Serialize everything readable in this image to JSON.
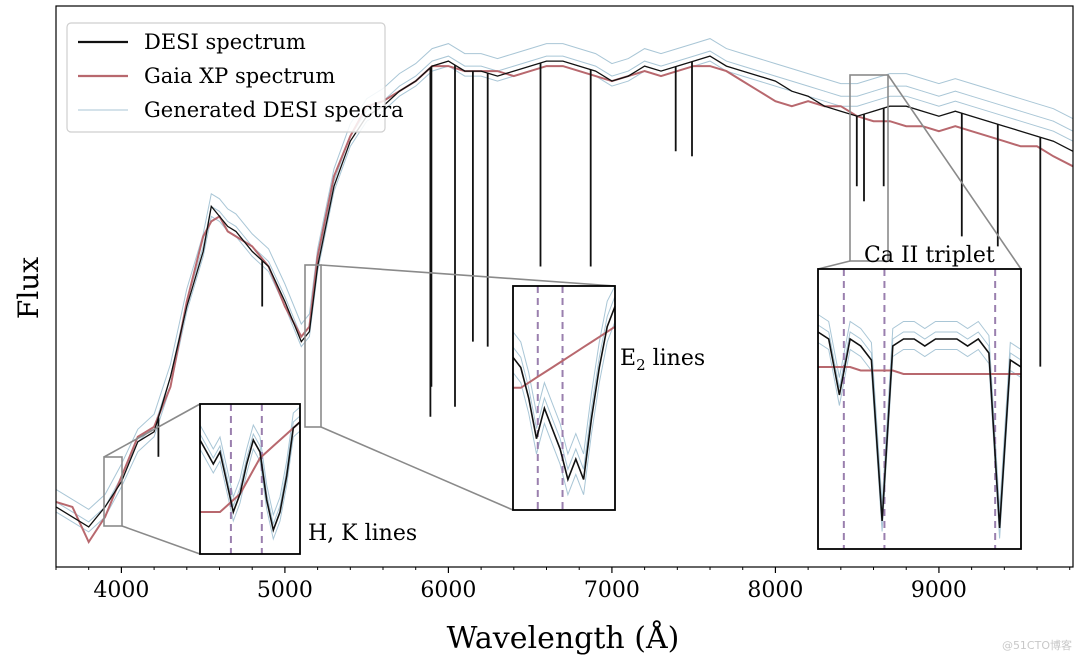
{
  "chart_data": {
    "type": "line",
    "xlabel": "Wavelength (Å)",
    "ylabel": "Flux",
    "xlim": [
      3600,
      9820
    ],
    "ylim": [
      0,
      1.12
    ],
    "x_ticks": [
      4000,
      5000,
      6000,
      7000,
      8000,
      9000
    ],
    "x_tick_labels": [
      "4000",
      "5000",
      "6000",
      "7000",
      "8000",
      "9000"
    ],
    "grid": false,
    "legend_position": "top-left",
    "colors": {
      "desi": "#111111",
      "gaia": "#b8686e",
      "generated": "#a9c6d6",
      "inset_lines": "#9a7fae",
      "connector": "#8a8a8a"
    },
    "legend": [
      {
        "label": "DESI spectrum",
        "key": "desi"
      },
      {
        "label": "Gaia XP spectrum",
        "key": "gaia"
      },
      {
        "label": "Generated DESI spectra",
        "key": "generated"
      }
    ],
    "series": [
      {
        "name": "Gaia XP spectrum",
        "key": "gaia",
        "x": [
          3600,
          3700,
          3800,
          3900,
          4000,
          4100,
          4200,
          4300,
          4400,
          4500,
          4550,
          4600,
          4650,
          4700,
          4800,
          4900,
          5000,
          5100,
          5150,
          5200,
          5300,
          5400,
          5500,
          5600,
          5700,
          5800,
          5900,
          6000,
          6100,
          6200,
          6300,
          6400,
          6500,
          6600,
          6700,
          6800,
          6900,
          7000,
          7100,
          7200,
          7300,
          7400,
          7500,
          7600,
          7700,
          7800,
          7900,
          8000,
          8100,
          8200,
          8300,
          8400,
          8500,
          8600,
          8700,
          8800,
          8900,
          9000,
          9100,
          9200,
          9300,
          9400,
          9500,
          9600,
          9700,
          9820
        ],
        "y": [
          0.13,
          0.12,
          0.05,
          0.1,
          0.18,
          0.26,
          0.28,
          0.36,
          0.53,
          0.66,
          0.69,
          0.7,
          0.67,
          0.66,
          0.64,
          0.6,
          0.52,
          0.46,
          0.48,
          0.62,
          0.78,
          0.86,
          0.92,
          0.93,
          0.95,
          0.97,
          1.0,
          1.0,
          0.99,
          0.99,
          0.99,
          0.98,
          0.99,
          1.0,
          1.0,
          0.99,
          0.98,
          0.97,
          0.98,
          0.99,
          0.98,
          0.99,
          1.0,
          1.0,
          0.99,
          0.97,
          0.95,
          0.93,
          0.92,
          0.93,
          0.92,
          0.92,
          0.9,
          0.89,
          0.89,
          0.88,
          0.88,
          0.87,
          0.88,
          0.87,
          0.86,
          0.85,
          0.84,
          0.84,
          0.82,
          0.8
        ]
      },
      {
        "name": "DESI spectrum",
        "key": "desi",
        "x": [
          3600,
          3700,
          3800,
          3900,
          4000,
          4100,
          4200,
          4300,
          4400,
          4500,
          4550,
          4600,
          4650,
          4700,
          4800,
          4900,
          5000,
          5100,
          5150,
          5200,
          5300,
          5400,
          5500,
          5600,
          5700,
          5800,
          5900,
          6000,
          6100,
          6200,
          6300,
          6400,
          6500,
          6600,
          6700,
          6800,
          6900,
          7000,
          7100,
          7200,
          7300,
          7400,
          7500,
          7600,
          7700,
          7800,
          7900,
          8000,
          8100,
          8200,
          8300,
          8400,
          8500,
          8600,
          8700,
          8800,
          8900,
          9000,
          9100,
          9200,
          9300,
          9400,
          9500,
          9600,
          9700,
          9820
        ],
        "y": [
          0.12,
          0.1,
          0.08,
          0.12,
          0.17,
          0.25,
          0.27,
          0.38,
          0.52,
          0.63,
          0.72,
          0.7,
          0.68,
          0.67,
          0.63,
          0.6,
          0.53,
          0.45,
          0.47,
          0.6,
          0.76,
          0.85,
          0.9,
          0.92,
          0.95,
          0.97,
          1.0,
          1.01,
          0.99,
          0.99,
          0.98,
          0.99,
          1.0,
          1.01,
          1.01,
          1.0,
          0.99,
          0.97,
          0.98,
          1.0,
          0.99,
          1.0,
          1.01,
          1.02,
          1.0,
          0.99,
          0.98,
          0.97,
          0.95,
          0.94,
          0.92,
          0.91,
          0.9,
          0.91,
          0.92,
          0.92,
          0.91,
          0.9,
          0.91,
          0.9,
          0.89,
          0.88,
          0.87,
          0.86,
          0.85,
          0.83
        ]
      },
      {
        "name": "Generated DESI spectra",
        "key": "generated",
        "x": [
          3600,
          3700,
          3800,
          3900,
          4000,
          4100,
          4200,
          4300,
          4400,
          4500,
          4550,
          4600,
          4650,
          4700,
          4800,
          4900,
          5000,
          5100,
          5150,
          5200,
          5300,
          5400,
          5500,
          5600,
          5700,
          5800,
          5900,
          6000,
          6100,
          6200,
          6300,
          6400,
          6500,
          6600,
          6700,
          6800,
          6900,
          7000,
          7100,
          7200,
          7300,
          7400,
          7500,
          7600,
          7700,
          7800,
          7900,
          8000,
          8100,
          8200,
          8300,
          8400,
          8500,
          8600,
          8700,
          8800,
          8900,
          9000,
          9100,
          9200,
          9300,
          9400,
          9500,
          9600,
          9700,
          9820
        ],
        "y": [
          0.13,
          0.11,
          0.09,
          0.12,
          0.18,
          0.25,
          0.28,
          0.38,
          0.53,
          0.64,
          0.72,
          0.71,
          0.69,
          0.68,
          0.64,
          0.61,
          0.54,
          0.46,
          0.48,
          0.61,
          0.77,
          0.86,
          0.91,
          0.93,
          0.96,
          0.98,
          1.01,
          1.02,
          1.0,
          1.0,
          0.99,
          1.0,
          1.01,
          1.02,
          1.02,
          1.01,
          1.0,
          0.98,
          0.99,
          1.01,
          1.0,
          1.01,
          1.02,
          1.03,
          1.01,
          1.0,
          0.99,
          0.98,
          0.97,
          0.96,
          0.95,
          0.94,
          0.94,
          0.95,
          0.96,
          0.96,
          0.95,
          0.94,
          0.95,
          0.94,
          0.93,
          0.92,
          0.91,
          0.9,
          0.89,
          0.87
        ]
      }
    ],
    "absorption_lines": [
      {
        "x": 4226,
        "y": 0.22
      },
      {
        "x": 4861,
        "y": 0.52
      },
      {
        "x": 5890,
        "y": 0.3
      },
      {
        "x": 5896,
        "y": 0.36
      },
      {
        "x": 6040,
        "y": 0.32
      },
      {
        "x": 6150,
        "y": 0.45
      },
      {
        "x": 6240,
        "y": 0.44
      },
      {
        "x": 6563,
        "y": 0.6
      },
      {
        "x": 6870,
        "y": 0.6
      },
      {
        "x": 7390,
        "y": 0.83
      },
      {
        "x": 7490,
        "y": 0.82
      },
      {
        "x": 8498,
        "y": 0.76
      },
      {
        "x": 8542,
        "y": 0.73
      },
      {
        "x": 8662,
        "y": 0.76
      },
      {
        "x": 9140,
        "y": 0.66
      },
      {
        "x": 9360,
        "y": 0.64
      },
      {
        "x": 9620,
        "y": 0.4
      }
    ],
    "insets": [
      {
        "label": "H, K lines",
        "label_html": "H, K lines",
        "xlim": [
          3900,
          4010
        ],
        "ylim": [
          0.05,
          0.3
        ],
        "reference_lines": [
          3934,
          3968
        ],
        "desi": [
          0.24,
          0.22,
          0.2,
          0.22,
          0.17,
          0.12,
          0.15,
          0.2,
          0.24,
          0.22,
          0.14,
          0.09,
          0.12,
          0.18,
          0.26,
          0.27
        ],
        "gaia": [
          0.12,
          0.12,
          0.12,
          0.12,
          0.13,
          0.14,
          0.15,
          0.17,
          0.19,
          0.21,
          0.22,
          0.23,
          0.24,
          0.25,
          0.26,
          0.27
        ]
      },
      {
        "label": "E2 lines",
        "label_html": "E<sub>2</sub> lines",
        "xlim": [
          5150,
          5220
        ],
        "ylim": [
          0.38,
          0.6
        ],
        "reference_lines": [
          5167,
          5184
        ],
        "desi": [
          0.53,
          0.52,
          0.49,
          0.45,
          0.48,
          0.46,
          0.44,
          0.41,
          0.43,
          0.41,
          0.47,
          0.52,
          0.56,
          0.58
        ],
        "gaia": [
          0.5,
          0.5,
          0.505,
          0.51,
          0.515,
          0.52,
          0.525,
          0.53,
          0.535,
          0.54,
          0.545,
          0.55,
          0.555,
          0.56
        ]
      },
      {
        "label": "Ca II triplet",
        "label_html": "Ca II triplet",
        "xlim": [
          8470,
          8690
        ],
        "ylim": [
          0.6,
          1.0
        ],
        "reference_lines": [
          8498,
          8542,
          8662
        ],
        "desi": [
          0.91,
          0.9,
          0.82,
          0.9,
          0.89,
          0.87,
          0.64,
          0.89,
          0.9,
          0.9,
          0.89,
          0.9,
          0.9,
          0.9,
          0.89,
          0.9,
          0.88,
          0.63,
          0.87,
          0.86
        ],
        "gaia": [
          0.86,
          0.86,
          0.86,
          0.86,
          0.855,
          0.855,
          0.855,
          0.855,
          0.85,
          0.85,
          0.85,
          0.85,
          0.85,
          0.85,
          0.85,
          0.85,
          0.85,
          0.85,
          0.85,
          0.85
        ]
      }
    ]
  },
  "watermark": "@51CTO博客"
}
